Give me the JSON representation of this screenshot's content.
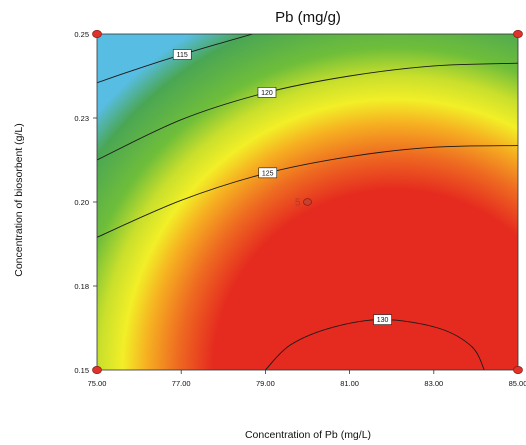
{
  "chart_data": {
    "type": "heatmap",
    "subtype": "response-surface contour plot",
    "title": "Pb (mg/g)",
    "xlabel": "Concentration of Pb (mg/L)",
    "ylabel": "Concentration of biosorbent (g/L)",
    "xlim": [
      75,
      85
    ],
    "ylim": [
      0.15,
      0.25
    ],
    "x_ticks": [
      "75.00",
      "77.00",
      "79.00",
      "81.00",
      "83.00",
      "85.00"
    ],
    "y_ticks": [
      "0.15",
      "0.18",
      "0.20",
      "0.23",
      "0.25"
    ],
    "colorscale": {
      "low": "#5bc0e6",
      "mid": "#f2ef27",
      "high": "#e52a1f",
      "stops": [
        "#58bde3",
        "#4aa654",
        "#6fbe3a",
        "#c9df2c",
        "#f2ef27",
        "#f6b021",
        "#ee6a21",
        "#e52a1f"
      ]
    },
    "contours": [
      {
        "label": "115",
        "points": [
          [
            75,
            0.2355
          ],
          [
            76,
            0.2398
          ],
          [
            77,
            0.2438
          ],
          [
            78,
            0.2475
          ],
          [
            78.7,
            0.25
          ]
        ]
      },
      {
        "label": "120",
        "points": [
          [
            75,
            0.2125
          ],
          [
            77,
            0.2245
          ],
          [
            79,
            0.2325
          ],
          [
            81,
            0.2375
          ],
          [
            83,
            0.2405
          ],
          [
            85,
            0.2413
          ]
        ]
      },
      {
        "label": "125",
        "points": [
          [
            75,
            0.1895
          ],
          [
            77,
            0.2005
          ],
          [
            79,
            0.2085
          ],
          [
            81,
            0.2135
          ],
          [
            83,
            0.2163
          ],
          [
            85,
            0.2168
          ]
        ]
      },
      {
        "label": "130",
        "points": [
          [
            79,
            0.15
          ],
          [
            79.6,
            0.1575
          ],
          [
            80.6,
            0.1627
          ],
          [
            81.8,
            0.165
          ],
          [
            83.1,
            0.1625
          ],
          [
            83.9,
            0.157
          ],
          [
            84.2,
            0.15
          ]
        ]
      }
    ],
    "design_points": [
      {
        "x": 75,
        "y": 0.25
      },
      {
        "x": 85,
        "y": 0.25
      },
      {
        "x": 75,
        "y": 0.15
      },
      {
        "x": 85,
        "y": 0.15
      },
      {
        "x": 80,
        "y": 0.2,
        "label": "5"
      }
    ],
    "grid": false,
    "legend": "none"
  }
}
